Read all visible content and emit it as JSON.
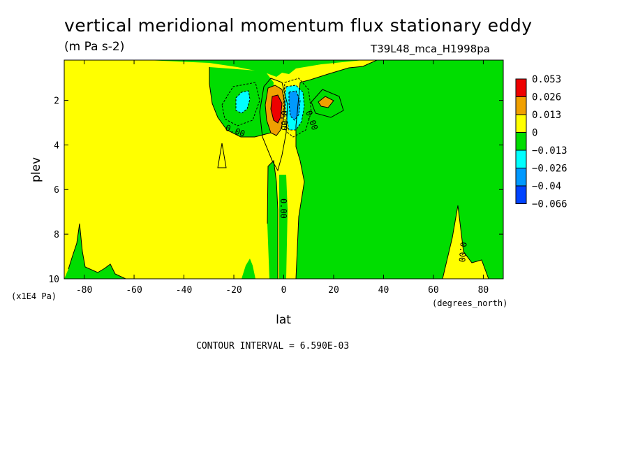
{
  "chart_data": {
    "type": "heatmap",
    "title": "vertical meridional momentum flux stationary eddy",
    "units": "(m Pa s-2)",
    "run_id": "T39L48_mca_H1998pa",
    "xlabel": "lat",
    "x_units": "(degrees_north)",
    "ylabel": "plev",
    "y_units": "(x1E4 Pa)",
    "xlim": [
      -88,
      88
    ],
    "ylim": [
      10,
      0.2
    ],
    "x_ticks": [
      "-80",
      "-60",
      "-40",
      "-20",
      "0",
      "20",
      "40",
      "60",
      "80"
    ],
    "x_tick_values": [
      -80,
      -60,
      -40,
      -20,
      0,
      20,
      40,
      60,
      80
    ],
    "y_ticks": [
      "2",
      "4",
      "6",
      "8",
      "10"
    ],
    "y_tick_values": [
      2,
      4,
      6,
      8,
      10
    ],
    "contour_interval_text": "CONTOUR INTERVAL = 6.590E-03",
    "contour_labels": [
      "0.00",
      "0.00",
      "0.00",
      "0.00",
      "0.00"
    ],
    "colorbar": {
      "labels": [
        "0.053",
        "0.026",
        "0.013",
        "0",
        "−0.013",
        "−0.026",
        "−0.04",
        "−0.066"
      ],
      "colors": [
        "#ee0000",
        "#f0a000",
        "#ffff00",
        "#00dd00",
        "#00ffff",
        "#0099ff",
        "#0044ff"
      ]
    },
    "colors": {
      "positive_low": "#ffff00",
      "negative_low": "#00dd00",
      "positive_mid": "#f0a000",
      "positive_high": "#ee0000",
      "negative_mid": "#00ffff",
      "negative_high": "#0099ff"
    },
    "features": [
      {
        "kind": "max",
        "lat": -4,
        "plev": 2.3,
        "value": 0.053
      },
      {
        "kind": "min",
        "lat": 4,
        "plev": 2.2,
        "value": -0.04
      },
      {
        "kind": "min",
        "lat": -17,
        "plev": 2.0,
        "value": -0.02
      },
      {
        "kind": "max",
        "lat": 17,
        "plev": 2.0,
        "value": 0.02
      }
    ]
  }
}
